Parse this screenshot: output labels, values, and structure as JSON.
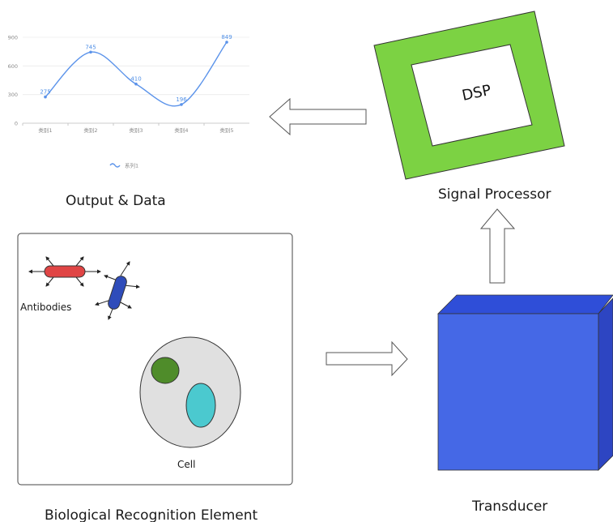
{
  "labels": {
    "output": "Output & Data",
    "signal_processor": "Signal Processor",
    "dsp": "DSP",
    "transducer": "Transducer",
    "bio_element": "Biological Recognition Element",
    "antibodies": "Antibodies",
    "cell": "Cell"
  },
  "colors": {
    "dsp_frame": "#7cd243",
    "transducer_front": "#4568e6",
    "transducer_top": "#2f4ed8",
    "transducer_side": "#2d45c2",
    "antibody_red": "#e04545",
    "antibody_blue": "#2f4cba",
    "cell_body": "#e0e0e0",
    "nucleus_green": "#4f8c2a",
    "nucleus_cyan": "#4bc9cf",
    "series_line": "#5b93ea"
  },
  "chart_data": {
    "type": "line",
    "categories": [
      "类别1",
      "类别2",
      "类别3",
      "类别4",
      "类别5"
    ],
    "series": [
      {
        "name": "系列1",
        "values": [
          275,
          745,
          410,
          196,
          849
        ]
      }
    ],
    "y_ticks": [
      0,
      300,
      600,
      900
    ],
    "ylim": [
      0,
      900
    ],
    "smooth": true,
    "grid": true,
    "legend": "bottom-center"
  }
}
